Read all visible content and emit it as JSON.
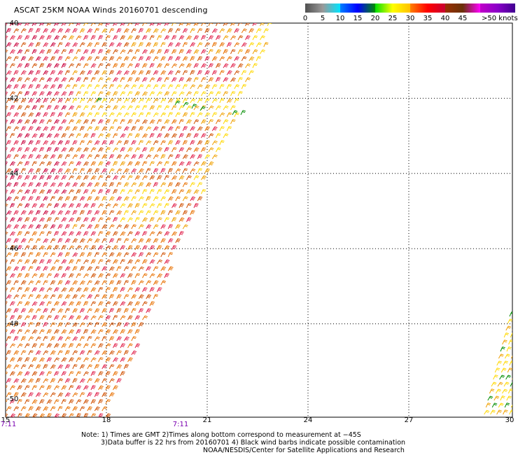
{
  "title": "ASCAT 25KM NOAA Winds 20160701 descending",
  "legend": {
    "colors": [
      "#505050",
      "#999999",
      "#00e4ff",
      "#0080ff",
      "#0000ff",
      "#008c00",
      "#00e000",
      "#ffff00",
      "#ffc000",
      "#ff8000",
      "#ff0000",
      "#c80032",
      "#9a2f00",
      "#6a3008",
      "#ff00ff",
      "#c000c8",
      "#8a00c8",
      "#400090"
    ],
    "labels": [
      {
        "text": "0",
        "at": 0
      },
      {
        "text": "5",
        "at": 5
      },
      {
        "text": "10",
        "at": 10
      },
      {
        "text": "15",
        "at": 15
      },
      {
        "text": "20",
        "at": 20
      },
      {
        "text": "25",
        "at": 25
      },
      {
        "text": "30",
        "at": 30
      },
      {
        "text": "35",
        "at": 35
      },
      {
        "text": "40",
        "at": 40
      },
      {
        "text": "45",
        "at": 45
      },
      {
        "text": ">50 knots",
        "at": 50
      }
    ]
  },
  "axes": {
    "lon_ticks": [
      "15",
      "18",
      "21",
      "24",
      "27",
      "30"
    ],
    "lat_ticks": [
      "-40",
      "-42",
      "-44",
      "-46",
      "-48",
      "-50"
    ]
  },
  "time_labels": [
    "7:11",
    "7:11"
  ],
  "notes": {
    "line1": "Note: 1) Times are GMT 2)Times along bottom correspond to measurement at −45S",
    "line2": "3)Data buffer is 22 hrs from 20160701 4) Black wind barbs indicate possible contamination",
    "line3": "NOAA/NESDIS/Center for Satellite Applications and Research"
  },
  "colors": {
    "barb_red": "#e0204a",
    "barb_crimson": "#c8003c",
    "barb_orange": "#e87000",
    "barb_darkorange": "#d05000",
    "barb_amber": "#f0a000",
    "barb_yellow": "#ffd800",
    "barb_green": "#008c00",
    "time_label": "#7a00b0"
  }
}
